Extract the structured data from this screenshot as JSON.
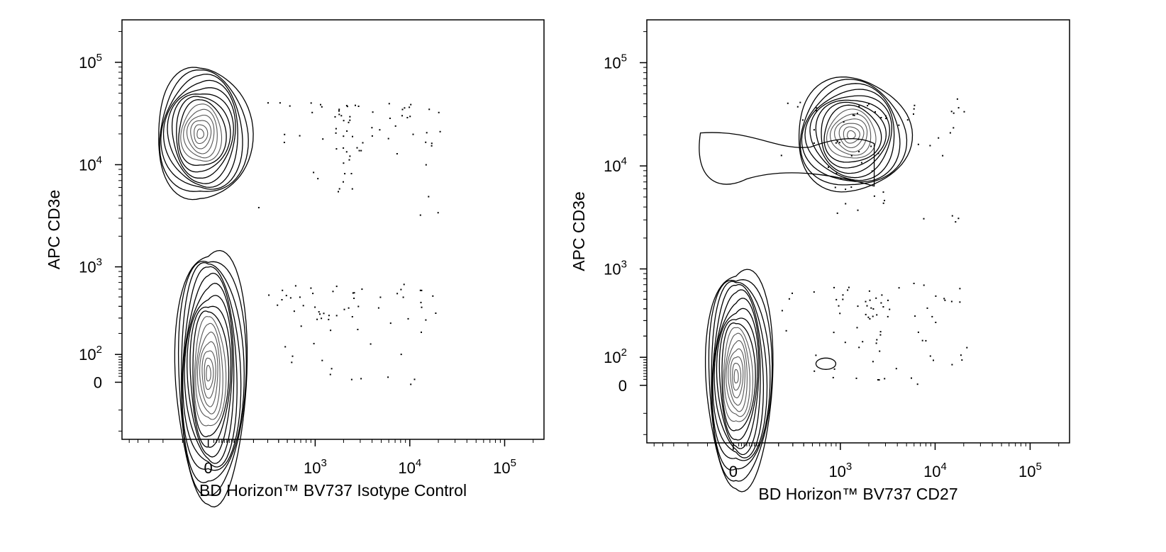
{
  "chart_data": [
    {
      "type": "contour",
      "xlabel": "BD Horizon™ BV737 Isotype Control",
      "ylabel": "APC CD3e",
      "x_scale": "biexponential",
      "y_scale": "biexponential",
      "x_ticks": [
        {
          "value": 0,
          "base": "0",
          "exp": ""
        },
        {
          "value": 1000,
          "base": "10",
          "exp": "3"
        },
        {
          "value": 10000,
          "base": "10",
          "exp": "4"
        },
        {
          "value": 100000,
          "base": "10",
          "exp": "5"
        }
      ],
      "y_ticks": [
        {
          "value": 0,
          "base": "0",
          "exp": ""
        },
        {
          "value": 100,
          "base": "10",
          "exp": "2"
        },
        {
          "value": 1000,
          "base": "10",
          "exp": "3"
        },
        {
          "value": 10000,
          "base": "10",
          "exp": "4"
        },
        {
          "value": 100000,
          "base": "10",
          "exp": "5"
        }
      ],
      "populations": [
        {
          "name": "",
          "x_center": -30,
          "y_center": 20000
        },
        {
          "name": "",
          "x_center": 0,
          "y_center": 30
        }
      ]
    },
    {
      "type": "contour",
      "xlabel": "BD Horizon™ BV737 CD27",
      "ylabel": "APC CD3e",
      "x_scale": "biexponential",
      "y_scale": "biexponential",
      "x_ticks": [
        {
          "value": 0,
          "base": "0",
          "exp": ""
        },
        {
          "value": 1000,
          "base": "10",
          "exp": "3"
        },
        {
          "value": 10000,
          "base": "10",
          "exp": "4"
        },
        {
          "value": 100000,
          "base": "10",
          "exp": "5"
        }
      ],
      "y_ticks": [
        {
          "value": 0,
          "base": "0",
          "exp": ""
        },
        {
          "value": 100,
          "base": "10",
          "exp": "2"
        },
        {
          "value": 1000,
          "base": "10",
          "exp": "3"
        },
        {
          "value": 10000,
          "base": "10",
          "exp": "4"
        },
        {
          "value": 100000,
          "base": "10",
          "exp": "5"
        }
      ],
      "populations": [
        {
          "name": "",
          "x_center": 1300,
          "y_center": 20000
        },
        {
          "name": "",
          "x_center": 10,
          "y_center": 30
        }
      ]
    }
  ]
}
